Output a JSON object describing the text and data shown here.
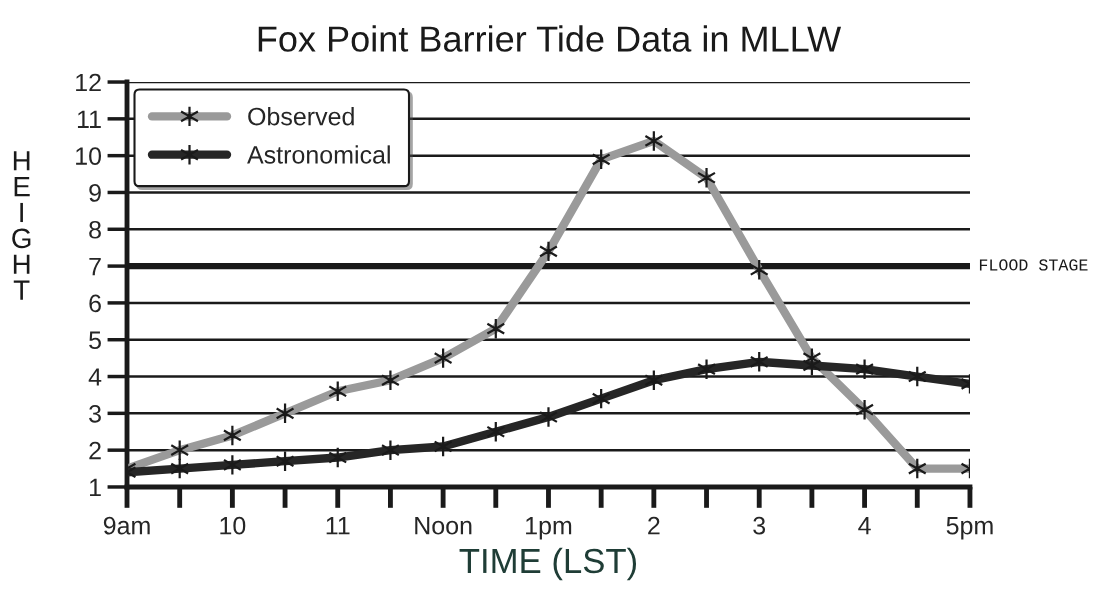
{
  "chart_data": {
    "type": "line",
    "title": "Fox Point Barrier Tide Data in MLLW",
    "xlabel": "TIME (LST)",
    "ylabel": "HEIGHT",
    "categories": [
      "9am",
      null,
      "10",
      null,
      "11",
      null,
      "Noon",
      null,
      "1pm",
      null,
      "2",
      null,
      "3",
      null,
      "4",
      null,
      "5pm"
    ],
    "series": [
      {
        "name": "Observed",
        "color": "#9a9a9a",
        "values": [
          1.5,
          2.0,
          2.4,
          3.0,
          3.6,
          3.9,
          4.5,
          5.3,
          7.4,
          9.9,
          10.4,
          9.4,
          6.9,
          4.5,
          3.1,
          1.5,
          1.5
        ]
      },
      {
        "name": "Astronomical",
        "color": "#262626",
        "values": [
          1.4,
          1.5,
          1.6,
          1.7,
          1.8,
          2.0,
          2.1,
          2.5,
          2.9,
          3.4,
          3.9,
          4.2,
          4.4,
          4.3,
          4.2,
          4.0,
          3.8
        ]
      }
    ],
    "ylim": [
      1,
      12
    ],
    "yticks": [
      1,
      2,
      3,
      4,
      5,
      6,
      7,
      8,
      9,
      10,
      11,
      12
    ],
    "ref_lines": [
      {
        "axis": "y",
        "value": 7,
        "label": "FLOOD STAGE",
        "color": "#1a1a1a"
      }
    ],
    "grid": "y",
    "legend": "top left",
    "marker": "cross",
    "line_style": "solid"
  }
}
